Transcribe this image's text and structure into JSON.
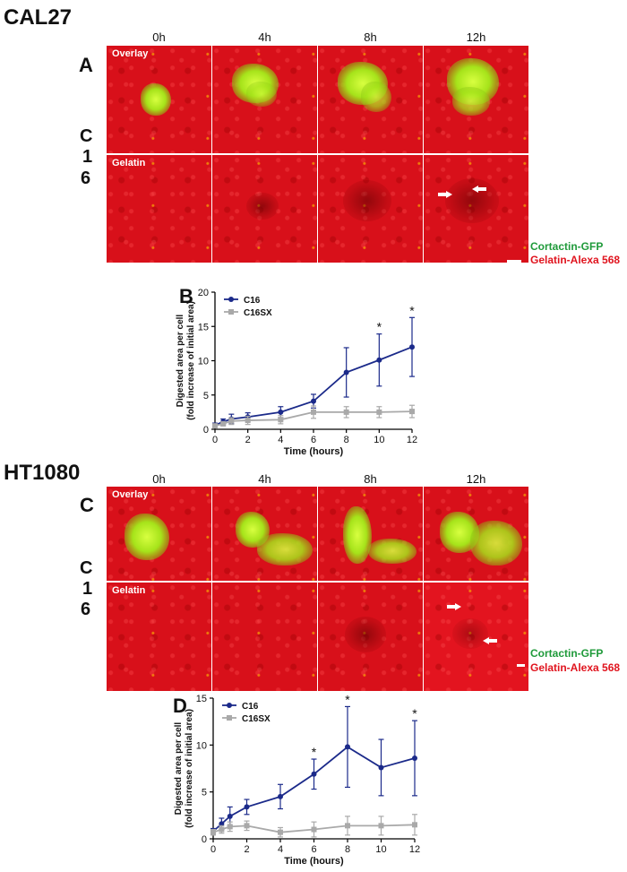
{
  "top": {
    "cell_line": "CAL27",
    "panel": "A",
    "row_label_chars": [
      "C",
      "1",
      "6"
    ],
    "time_labels": [
      "0h",
      "4h",
      "8h",
      "12h"
    ],
    "overlay_label": "Overlay",
    "gelatin_label": "Gelatin",
    "legend_green": "Cortactin-GFP",
    "legend_red": "Gelatin-Alexa 568"
  },
  "bottom": {
    "cell_line": "HT1080",
    "panel": "C",
    "row_label_chars": [
      "C",
      "1",
      "6"
    ],
    "time_labels": [
      "0h",
      "4h",
      "8h",
      "12h"
    ],
    "overlay_label": "Overlay",
    "gelatin_label": "Gelatin",
    "legend_green": "Cortactin-GFP",
    "legend_red": "Gelatin-Alexa 568"
  },
  "colors": {
    "gelatin_red": "#d8101a",
    "cortactin_green": "#a6e31a",
    "series_c16": "#1b2a8a",
    "series_c16sx": "#a9a9a9"
  },
  "chart_data": [
    {
      "panel": "B",
      "type": "line",
      "xlabel": "Time (hours)",
      "ylabel": "Digested area per cell",
      "ylabel2": "(fold increase of initial area)",
      "xlim": [
        0,
        12
      ],
      "ylim": [
        0,
        20
      ],
      "xticks": [
        0,
        2,
        4,
        6,
        8,
        10,
        12
      ],
      "yticks": [
        0,
        5,
        10,
        15,
        20
      ],
      "legend_position": "top-left",
      "significance": [
        "*",
        "*"
      ],
      "significance_x": [
        10,
        12
      ],
      "series": [
        {
          "name": "C16",
          "x": [
            0,
            0.5,
            1,
            2,
            4,
            6,
            8,
            10,
            12
          ],
          "y": [
            0.6,
            1.1,
            1.5,
            1.8,
            2.5,
            4.1,
            8.3,
            10.1,
            12.0
          ],
          "err": [
            0.3,
            0.4,
            0.7,
            0.6,
            0.8,
            1.0,
            3.6,
            3.8,
            4.3
          ]
        },
        {
          "name": "C16SX",
          "x": [
            0,
            0.5,
            1,
            2,
            4,
            6,
            8,
            10,
            12
          ],
          "y": [
            0.5,
            0.8,
            1.2,
            1.3,
            1.4,
            2.5,
            2.5,
            2.5,
            2.6
          ],
          "err": [
            0.2,
            0.3,
            0.5,
            0.6,
            0.6,
            0.9,
            0.8,
            0.8,
            0.9
          ]
        }
      ]
    },
    {
      "panel": "D",
      "type": "line",
      "xlabel": "Time (hours)",
      "ylabel": "Digested area per cell",
      "ylabel2": "(fold increase of initial area)",
      "xlim": [
        0,
        12
      ],
      "ylim": [
        0,
        15
      ],
      "xticks": [
        0,
        2,
        4,
        6,
        8,
        10,
        12
      ],
      "yticks": [
        0,
        5,
        10,
        15
      ],
      "legend_position": "top-left",
      "significance": [
        "*",
        "*",
        "*"
      ],
      "significance_x": [
        6,
        8,
        12
      ],
      "series": [
        {
          "name": "C16",
          "x": [
            0,
            0.5,
            1,
            2,
            4,
            6,
            8,
            10,
            12
          ],
          "y": [
            0.8,
            1.6,
            2.4,
            3.4,
            4.5,
            6.9,
            9.8,
            7.6,
            8.6
          ],
          "err": [
            0.3,
            0.6,
            1.0,
            0.8,
            1.3,
            1.6,
            4.3,
            3.0,
            4.0
          ]
        },
        {
          "name": "C16SX",
          "x": [
            0,
            0.5,
            1,
            2,
            4,
            6,
            8,
            10,
            12
          ],
          "y": [
            0.7,
            1.0,
            1.3,
            1.4,
            0.7,
            1.0,
            1.4,
            1.4,
            1.5
          ],
          "err": [
            0.3,
            0.4,
            0.5,
            0.5,
            0.5,
            0.8,
            1.0,
            1.0,
            1.1
          ]
        }
      ]
    }
  ]
}
